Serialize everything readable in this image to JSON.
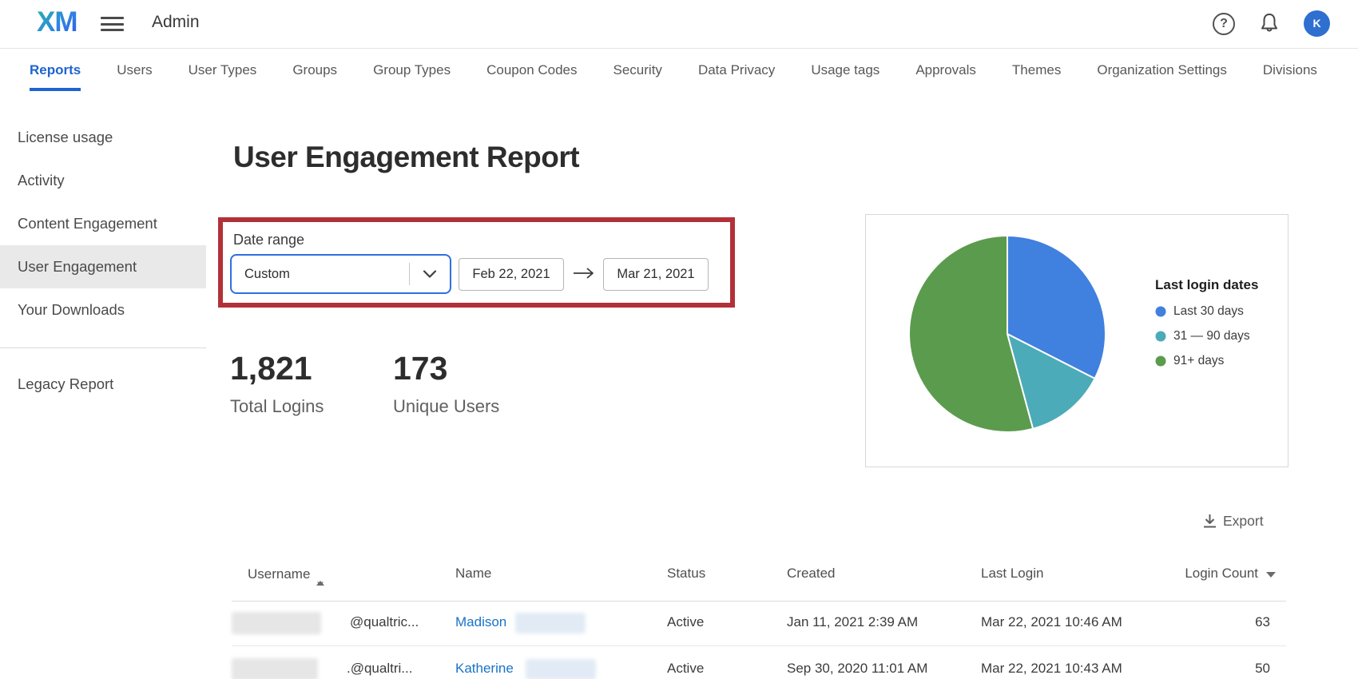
{
  "topbar": {
    "logo_text": "XM",
    "app_title": "Admin",
    "help_glyph": "?",
    "avatar_initial": "K"
  },
  "tabs": {
    "items": [
      {
        "label": "Reports",
        "active": true
      },
      {
        "label": "Users",
        "active": false
      },
      {
        "label": "User Types",
        "active": false
      },
      {
        "label": "Groups",
        "active": false
      },
      {
        "label": "Group Types",
        "active": false
      },
      {
        "label": "Coupon Codes",
        "active": false
      },
      {
        "label": "Security",
        "active": false
      },
      {
        "label": "Data Privacy",
        "active": false
      },
      {
        "label": "Usage tags",
        "active": false
      },
      {
        "label": "Approvals",
        "active": false
      },
      {
        "label": "Themes",
        "active": false
      },
      {
        "label": "Organization Settings",
        "active": false
      },
      {
        "label": "Divisions",
        "active": false
      }
    ]
  },
  "sidebar": {
    "items": [
      {
        "label": "License usage",
        "selected": false
      },
      {
        "label": "Activity",
        "selected": false
      },
      {
        "label": "Content Engagement",
        "selected": false
      },
      {
        "label": "User Engagement",
        "selected": true
      },
      {
        "label": "Your Downloads",
        "selected": false
      }
    ],
    "legacy_item": {
      "label": "Legacy Report"
    }
  },
  "main": {
    "title": "User Engagement Report",
    "date_range": {
      "label": "Date range",
      "preset_value": "Custom",
      "start_date": "Feb 22, 2021",
      "end_date": "Mar 21, 2021"
    },
    "stats": [
      {
        "value": "1,821",
        "label": "Total Logins"
      },
      {
        "value": "173",
        "label": "Unique Users"
      }
    ],
    "export_label": "Export"
  },
  "chart_data": {
    "type": "pie",
    "title": "Last login dates",
    "legend_position": "right",
    "start_angle_deg": 0,
    "direction": "clockwise",
    "slices": [
      {
        "label": "Last 30 days",
        "percent": 32.5,
        "color": "#4080df"
      },
      {
        "label": "31 — 90 days",
        "percent": 13.3,
        "color": "#4cabb8"
      },
      {
        "label": "91+ days",
        "percent": 54.2,
        "color": "#5b9b4d"
      }
    ]
  },
  "table": {
    "columns": [
      {
        "label": "Username",
        "sort": "both"
      },
      {
        "label": "Name",
        "sort": "none"
      },
      {
        "label": "Status",
        "sort": "none"
      },
      {
        "label": "Created",
        "sort": "none"
      },
      {
        "label": "Last Login",
        "sort": "none"
      },
      {
        "label": "Login Count",
        "sort": "desc"
      }
    ],
    "rows": [
      {
        "username_redacted": true,
        "username_suffix": "@qualtric...",
        "name_first": "Madison",
        "name_redacted": true,
        "status": "Active",
        "created": "Jan 11, 2021 2:39 AM",
        "last_login": "Mar 22, 2021 10:46 AM",
        "login_count": "63"
      },
      {
        "username_redacted": true,
        "username_suffix": ".@qualtri...",
        "name_first": "Katherine",
        "name_redacted": true,
        "status": "Active",
        "created": "Sep 30, 2020 11:01 AM",
        "last_login": "Mar 22, 2021 10:43 AM",
        "login_count": "50"
      }
    ]
  },
  "colors": {
    "accent_blue": "#1f63cf",
    "annotation_red": "#b23138",
    "link_blue": "#1a73c8",
    "avatar_blue": "#2e6fd0"
  }
}
